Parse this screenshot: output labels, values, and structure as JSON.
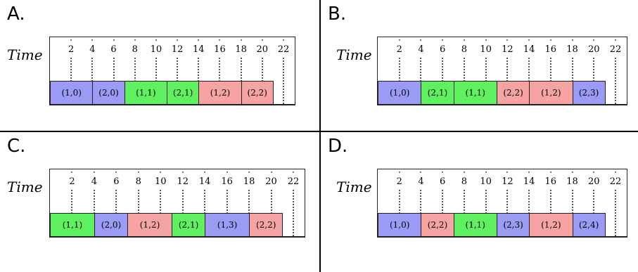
{
  "axis_label": "Time",
  "ticks": [
    2,
    4,
    6,
    8,
    10,
    12,
    14,
    16,
    18,
    20,
    22
  ],
  "colors": {
    "blue": "#9b9bf5",
    "green": "#5ff05f",
    "red": "#f5a3a3"
  },
  "panels": [
    {
      "label": "A.",
      "blocks": [
        {
          "text": "(1,0)",
          "start": 0,
          "end": 4,
          "color": "blue"
        },
        {
          "text": "(2,0)",
          "start": 4,
          "end": 7,
          "color": "blue"
        },
        {
          "text": "(1,1)",
          "start": 7,
          "end": 11,
          "color": "green"
        },
        {
          "text": "(2,1)",
          "start": 11,
          "end": 14,
          "color": "green"
        },
        {
          "text": "(1,2)",
          "start": 14,
          "end": 18,
          "color": "red"
        },
        {
          "text": "(2,2)",
          "start": 18,
          "end": 21,
          "color": "red"
        }
      ]
    },
    {
      "label": "B.",
      "blocks": [
        {
          "text": "(1,0)",
          "start": 0,
          "end": 4,
          "color": "blue"
        },
        {
          "text": "(2,1)",
          "start": 4,
          "end": 7,
          "color": "green"
        },
        {
          "text": "(1,1)",
          "start": 7,
          "end": 11,
          "color": "green"
        },
        {
          "text": "(2,2)",
          "start": 11,
          "end": 14,
          "color": "red"
        },
        {
          "text": "(1,2)",
          "start": 14,
          "end": 18,
          "color": "red"
        },
        {
          "text": "(2,3)",
          "start": 18,
          "end": 21,
          "color": "blue"
        }
      ]
    },
    {
      "label": "C.",
      "blocks": [
        {
          "text": "(1,1)",
          "start": 0,
          "end": 4,
          "color": "green"
        },
        {
          "text": "(2,0)",
          "start": 4,
          "end": 7,
          "color": "blue"
        },
        {
          "text": "(1,2)",
          "start": 7,
          "end": 11,
          "color": "red"
        },
        {
          "text": "(2,1)",
          "start": 11,
          "end": 14,
          "color": "green"
        },
        {
          "text": "(1,3)",
          "start": 14,
          "end": 18,
          "color": "blue"
        },
        {
          "text": "(2,2)",
          "start": 18,
          "end": 21,
          "color": "red"
        }
      ]
    },
    {
      "label": "D.",
      "blocks": [
        {
          "text": "(1,0)",
          "start": 0,
          "end": 4,
          "color": "blue"
        },
        {
          "text": "(2,2)",
          "start": 4,
          "end": 7,
          "color": "red"
        },
        {
          "text": "(1,1)",
          "start": 7,
          "end": 11,
          "color": "green"
        },
        {
          "text": "(2,3)",
          "start": 11,
          "end": 14,
          "color": "blue"
        },
        {
          "text": "(1,2)",
          "start": 14,
          "end": 18,
          "color": "red"
        },
        {
          "text": "(2,4)",
          "start": 18,
          "end": 21,
          "color": "blue"
        }
      ]
    }
  ]
}
